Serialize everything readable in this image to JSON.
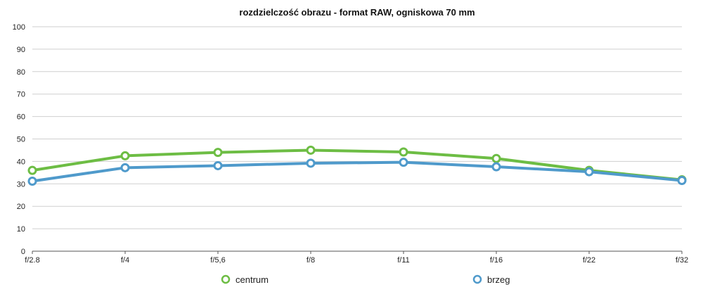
{
  "chart_data": {
    "type": "line",
    "title": "rozdzielczość obrazu - format RAW, ogniskowa 70 mm",
    "categories": [
      "f/2.8",
      "f/4",
      "f/5,6",
      "f/8",
      "f/11",
      "f/16",
      "f/22",
      "f/32"
    ],
    "series": [
      {
        "name": "centrum",
        "color": "#6dbd44",
        "values": [
          36.0,
          42.5,
          44.0,
          45.0,
          44.2,
          41.3,
          36.0,
          31.8
        ]
      },
      {
        "name": "brzeg",
        "color": "#4f9acb",
        "values": [
          31.2,
          37.2,
          38.1,
          39.2,
          39.6,
          37.6,
          35.4,
          31.5
        ]
      }
    ],
    "yticks": [
      "0",
      "10",
      "20",
      "30",
      "40",
      "50",
      "60",
      "70",
      "80",
      "90",
      "100"
    ],
    "ylim": [
      0,
      100
    ],
    "grid": true,
    "legend_position": "bottom"
  }
}
